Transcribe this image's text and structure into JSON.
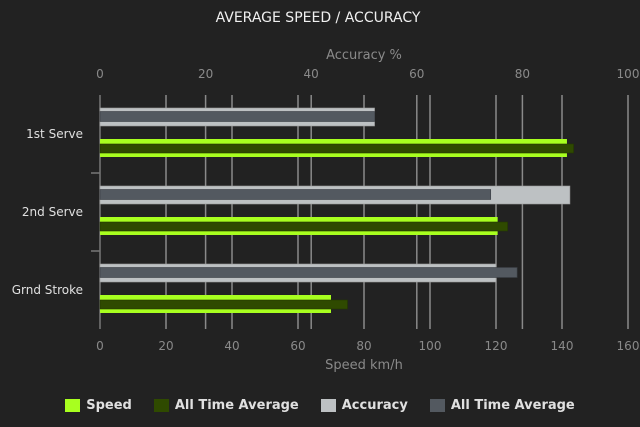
{
  "chart_data": {
    "type": "bar",
    "orientation": "horizontal",
    "title": "AVERAGE SPEED / ACCURACY",
    "categories": [
      "1st Serve",
      "2nd Serve",
      "Grnd Stroke"
    ],
    "x_axis_bottom": {
      "label": "Speed km/h",
      "range": [
        0,
        160
      ],
      "ticks": [
        "0",
        "20",
        "40",
        "60",
        "80",
        "100",
        "120",
        "140",
        "160"
      ]
    },
    "x_axis_top": {
      "label": "Accuracy %",
      "range": [
        0,
        100
      ],
      "ticks": [
        "0",
        "20",
        "40",
        "60",
        "80",
        "100"
      ]
    },
    "grid": true,
    "legend_placement": "bottom",
    "series": [
      {
        "name": "Speed",
        "axis": "speed",
        "color": "#a8ff1f",
        "values": [
          141.5,
          120.5,
          70
        ]
      },
      {
        "name": "All Time Average",
        "axis": "speed",
        "color": "#2f4a00",
        "values": [
          143.5,
          123.5,
          75
        ]
      },
      {
        "name": "Accuracy",
        "axis": "accuracy",
        "color": "#bdc1c3",
        "values": [
          52,
          89,
          75
        ]
      },
      {
        "name": "All Time Average",
        "axis": "accuracy",
        "color": "#535960",
        "values": [
          52,
          74,
          79
        ]
      }
    ]
  }
}
